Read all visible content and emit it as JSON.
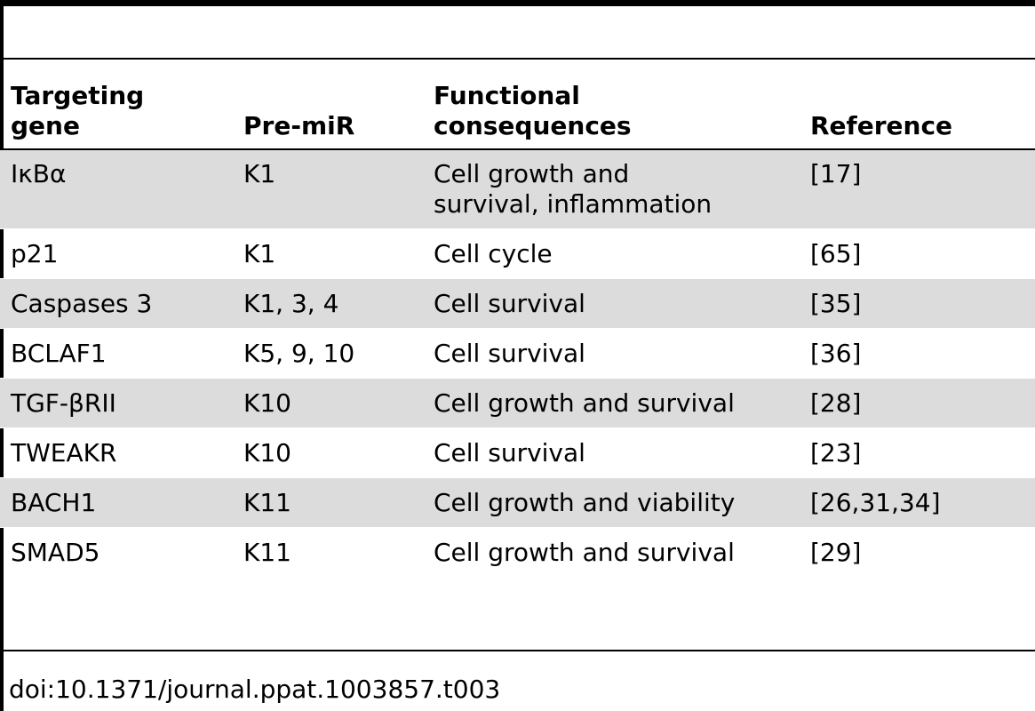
{
  "table": {
    "headers": {
      "targeting_gene": "Targeting gene",
      "pre_mir": "Pre-miR",
      "functional_consequences": "Functional consequences",
      "reference": "Reference"
    },
    "rows": [
      {
        "gene": "IκBα",
        "pre_mir": "K1",
        "consequence": "Cell growth and survival, inflammation",
        "reference": "[17]"
      },
      {
        "gene": "p21",
        "pre_mir": "K1",
        "consequence": "Cell cycle",
        "reference": "[65]"
      },
      {
        "gene": "Caspases 3",
        "pre_mir": "K1, 3, 4",
        "consequence": "Cell survival",
        "reference": "[35]"
      },
      {
        "gene": "BCLAF1",
        "pre_mir": "K5, 9, 10",
        "consequence": "Cell survival",
        "reference": "[36]"
      },
      {
        "gene": "TGF-βRII",
        "pre_mir": "K10",
        "consequence": "Cell growth and survival",
        "reference": "[28]"
      },
      {
        "gene": "TWEAKR",
        "pre_mir": "K10",
        "consequence": "Cell survival",
        "reference": "[23]"
      },
      {
        "gene": "BACH1",
        "pre_mir": "K11",
        "consequence": "Cell growth and viability",
        "reference": "[26,31,34]"
      },
      {
        "gene": "SMAD5",
        "pre_mir": "K11",
        "consequence": "Cell growth and survival",
        "reference": "[29]"
      }
    ]
  },
  "footer": {
    "doi": "doi:10.1371/journal.ppat.1003857.t003"
  },
  "colors": {
    "row_shade": "#dcdcdc",
    "rule": "#000000"
  }
}
